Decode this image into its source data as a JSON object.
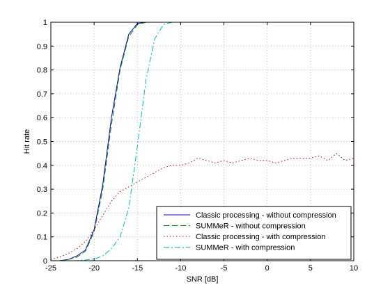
{
  "chart_data": {
    "type": "line",
    "title": "",
    "xlabel": "SNR [dB]",
    "ylabel": "Hit rate",
    "xlim": [
      -25,
      10
    ],
    "ylim": [
      0,
      1
    ],
    "xticks": [
      -25,
      -20,
      -15,
      -10,
      -5,
      0,
      5,
      10
    ],
    "yticks": [
      0,
      0.1,
      0.2,
      0.3,
      0.4,
      0.5,
      0.6,
      0.7,
      0.8,
      0.9,
      1
    ],
    "grid": true,
    "legend_position": "bottom-right",
    "series": [
      {
        "name": "Classic processing - without compression",
        "color": "#0000cc",
        "style": "solid",
        "x": [
          -25,
          -24,
          -23,
          -22,
          -21,
          -20,
          -19,
          -18,
          -17,
          -16,
          -15,
          -14,
          -13,
          -12,
          -11,
          -10,
          -5,
          0,
          5,
          10
        ],
        "y": [
          0,
          0,
          0.005,
          0.02,
          0.045,
          0.13,
          0.32,
          0.6,
          0.81,
          0.95,
          0.995,
          1,
          1,
          1,
          1,
          1,
          1,
          1,
          1,
          1
        ]
      },
      {
        "name": "SUMMeR - without compression",
        "color": "#008800",
        "style": "dashed",
        "x": [
          -25,
          -24,
          -23,
          -22,
          -21,
          -20,
          -19,
          -18,
          -17,
          -16,
          -15,
          -14,
          -13,
          -12,
          -11,
          -10,
          -5,
          0,
          5,
          10
        ],
        "y": [
          0,
          0,
          0.005,
          0.015,
          0.04,
          0.12,
          0.3,
          0.57,
          0.8,
          0.94,
          0.99,
          1,
          1,
          1,
          1,
          1,
          1,
          1,
          1,
          1
        ]
      },
      {
        "name": "Classic processing - with compression",
        "color": "#cc0000",
        "style": "dotted",
        "x": [
          -25,
          -24,
          -23,
          -22,
          -21,
          -20,
          -19,
          -18,
          -17,
          -16,
          -15,
          -14,
          -13,
          -12,
          -11,
          -10,
          -9,
          -8,
          -7,
          -6,
          -5,
          -4,
          -3,
          -2,
          -1,
          0,
          1,
          2,
          3,
          4,
          5,
          6,
          7,
          8,
          9,
          10
        ],
        "y": [
          0.005,
          0.015,
          0.03,
          0.05,
          0.08,
          0.13,
          0.19,
          0.25,
          0.29,
          0.31,
          0.33,
          0.35,
          0.37,
          0.39,
          0.4,
          0.4,
          0.41,
          0.43,
          0.42,
          0.41,
          0.42,
          0.41,
          0.42,
          0.43,
          0.42,
          0.42,
          0.41,
          0.42,
          0.43,
          0.43,
          0.43,
          0.44,
          0.42,
          0.45,
          0.42,
          0.43
        ]
      },
      {
        "name": "SUMMeR - with compression",
        "color": "#00bbbb",
        "style": "dashdot",
        "x": [
          -25,
          -24,
          -23,
          -22,
          -21,
          -20,
          -19,
          -18,
          -17,
          -16,
          -15,
          -14,
          -13,
          -12,
          -11,
          -10,
          -5,
          0,
          5,
          10
        ],
        "y": [
          0,
          0,
          0,
          0,
          0.003,
          0.007,
          0.02,
          0.05,
          0.1,
          0.22,
          0.48,
          0.76,
          0.93,
          0.99,
          1,
          1,
          1,
          1,
          1,
          1
        ]
      }
    ]
  }
}
